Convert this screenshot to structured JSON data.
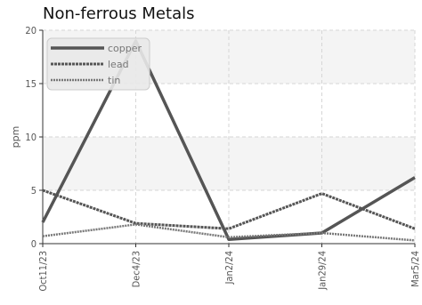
{
  "chart_data": {
    "type": "line",
    "title": "Non-ferrous Metals",
    "xlabel": "",
    "ylabel": "ppm",
    "categories": [
      "Oct11/23",
      "Dec4/23",
      "Jan2/24",
      "Jan29/24",
      "Mar5/24"
    ],
    "ylim": [
      0,
      20
    ],
    "yticks": [
      0,
      5,
      10,
      15,
      20
    ],
    "grid": true,
    "legend_position": "top-left",
    "series": [
      {
        "name": "copper",
        "values": [
          2.0,
          19.0,
          0.4,
          1.0,
          6.2
        ],
        "color": "#555555",
        "style": "solid"
      },
      {
        "name": "lead",
        "values": [
          5.0,
          1.9,
          1.4,
          4.7,
          1.4
        ],
        "color": "#555555",
        "style": "dashed"
      },
      {
        "name": "tin",
        "values": [
          0.7,
          1.8,
          0.6,
          1.0,
          0.3
        ],
        "color": "#777777",
        "style": "dotted"
      }
    ]
  }
}
